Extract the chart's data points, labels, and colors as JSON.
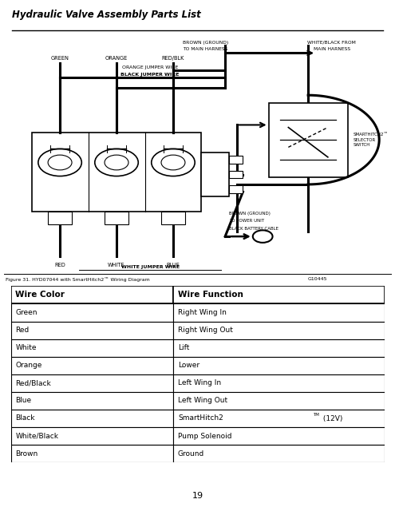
{
  "page_title": "Hydraulic Valve Assembly Parts List",
  "figure_caption": "Figure 31. HYD07044 with SmartHitch2™ Wiring Diagram",
  "figure_id": "G10445",
  "page_number": "19",
  "table_headers": [
    "Wire Color",
    "Wire Function"
  ],
  "table_rows": [
    [
      "Green",
      "Right Wing In"
    ],
    [
      "Red",
      "Right Wing Out"
    ],
    [
      "White",
      "Lift"
    ],
    [
      "Orange",
      "Lower"
    ],
    [
      "Red/Black",
      "Left Wing In"
    ],
    [
      "Blue",
      "Left Wing Out"
    ],
    [
      "Black",
      "SmartHitch2™ (12V)"
    ],
    [
      "White/Black",
      "Pump Solenoid"
    ],
    [
      "Brown",
      "Ground"
    ]
  ],
  "bg_color": "#ffffff",
  "text_color": "#000000",
  "title_font_size": 8.5,
  "caption_font_size": 5.5,
  "table_header_font_size": 7.5,
  "table_body_font_size": 6.5,
  "page_num_font_size": 8
}
